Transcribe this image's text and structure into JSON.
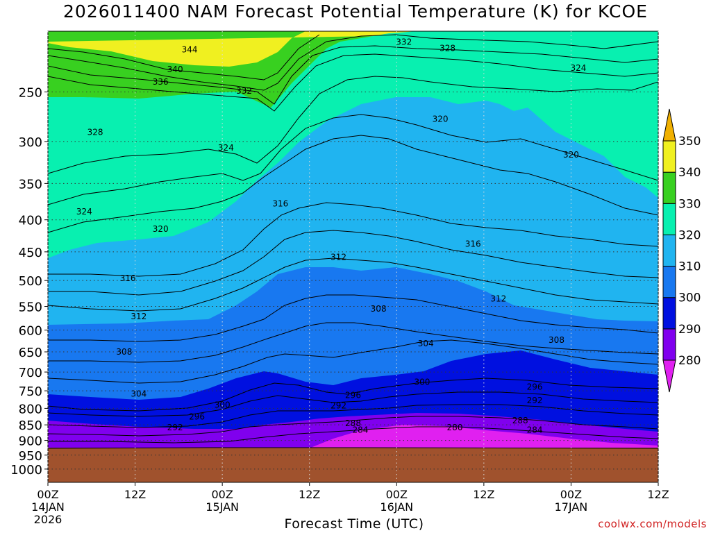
{
  "title": "2026011400 NAM Forecast Potential Temperature (K) for KCOE",
  "credit": "coolwx.com/models",
  "chart_data": {
    "type": "contour",
    "title": "2026011400 NAM Forecast Potential Temperature (K) for KCOE",
    "xlabel": "Forecast Time (UTC)",
    "ylabel": "",
    "x_ticks": [
      {
        "label": "00Z",
        "sub": "14JAN",
        "sub2": "2026",
        "hour": 0
      },
      {
        "label": "12Z",
        "sub": "",
        "sub2": "",
        "hour": 12
      },
      {
        "label": "00Z",
        "sub": "15JAN",
        "sub2": "",
        "hour": 24
      },
      {
        "label": "12Z",
        "sub": "",
        "sub2": "",
        "hour": 36
      },
      {
        "label": "00Z",
        "sub": "16JAN",
        "sub2": "",
        "hour": 48
      },
      {
        "label": "12Z",
        "sub": "",
        "sub2": "",
        "hour": 60
      },
      {
        "label": "00Z",
        "sub": "17JAN",
        "sub2": "",
        "hour": 72
      },
      {
        "label": "12Z",
        "sub": "",
        "sub2": "",
        "hour": 84
      }
    ],
    "xlim": [
      0,
      84
    ],
    "y_ticks": [
      250,
      300,
      350,
      400,
      450,
      500,
      550,
      600,
      650,
      700,
      750,
      800,
      850,
      900,
      950,
      1000
    ],
    "ylim": [
      200,
      1050
    ],
    "y_scale": "log",
    "grid": true,
    "colorbar": {
      "levels": [
        280,
        290,
        300,
        310,
        320,
        330,
        340,
        350
      ],
      "colors": [
        "#e020f0",
        "#8000ee",
        "#0010e0",
        "#1878f0",
        "#20b4f0",
        "#08f0b0",
        "#38d020",
        "#f0f020",
        "#f0b000"
      ],
      "placement": "right"
    },
    "contour_labels": [
      {
        "value": "344",
        "hour": 19.5,
        "p": 214
      },
      {
        "value": "340",
        "hour": 17.5,
        "p": 230
      },
      {
        "value": "336",
        "hour": 15.5,
        "p": 241
      },
      {
        "value": "332",
        "hour": 27,
        "p": 249
      },
      {
        "value": "332",
        "hour": 49,
        "p": 208
      },
      {
        "value": "328",
        "hour": 55,
        "p": 213
      },
      {
        "value": "328",
        "hour": 6.5,
        "p": 290
      },
      {
        "value": "324",
        "hour": 73,
        "p": 229
      },
      {
        "value": "324",
        "hour": 24.5,
        "p": 307
      },
      {
        "value": "324",
        "hour": 5,
        "p": 388
      },
      {
        "value": "320",
        "hour": 54,
        "p": 276
      },
      {
        "value": "320",
        "hour": 72,
        "p": 315
      },
      {
        "value": "320",
        "hour": 15.5,
        "p": 414
      },
      {
        "value": "316",
        "hour": 32,
        "p": 377
      },
      {
        "value": "316",
        "hour": 58.5,
        "p": 437
      },
      {
        "value": "316",
        "hour": 11,
        "p": 496
      },
      {
        "value": "312",
        "hour": 40,
        "p": 459
      },
      {
        "value": "312",
        "hour": 62,
        "p": 535
      },
      {
        "value": "312",
        "hour": 12.5,
        "p": 571
      },
      {
        "value": "308",
        "hour": 45.5,
        "p": 555
      },
      {
        "value": "308",
        "hour": 70,
        "p": 622
      },
      {
        "value": "308",
        "hour": 10.5,
        "p": 650
      },
      {
        "value": "304",
        "hour": 52,
        "p": 630
      },
      {
        "value": "304",
        "hour": 12.5,
        "p": 758
      },
      {
        "value": "300",
        "hour": 24,
        "p": 790
      },
      {
        "value": "300",
        "hour": 51.5,
        "p": 726
      },
      {
        "value": "296",
        "hour": 20.5,
        "p": 825
      },
      {
        "value": "296",
        "hour": 42,
        "p": 762
      },
      {
        "value": "296",
        "hour": 67,
        "p": 739
      },
      {
        "value": "292",
        "hour": 17.5,
        "p": 858
      },
      {
        "value": "292",
        "hour": 40,
        "p": 792
      },
      {
        "value": "292",
        "hour": 67,
        "p": 777
      },
      {
        "value": "288",
        "hour": 42,
        "p": 845
      },
      {
        "value": "288",
        "hour": 65,
        "p": 837
      },
      {
        "value": "284",
        "hour": 43,
        "p": 866
      },
      {
        "value": "284",
        "hour": 67,
        "p": 866
      },
      {
        "value": "280",
        "hour": 56,
        "p": 858
      }
    ]
  }
}
